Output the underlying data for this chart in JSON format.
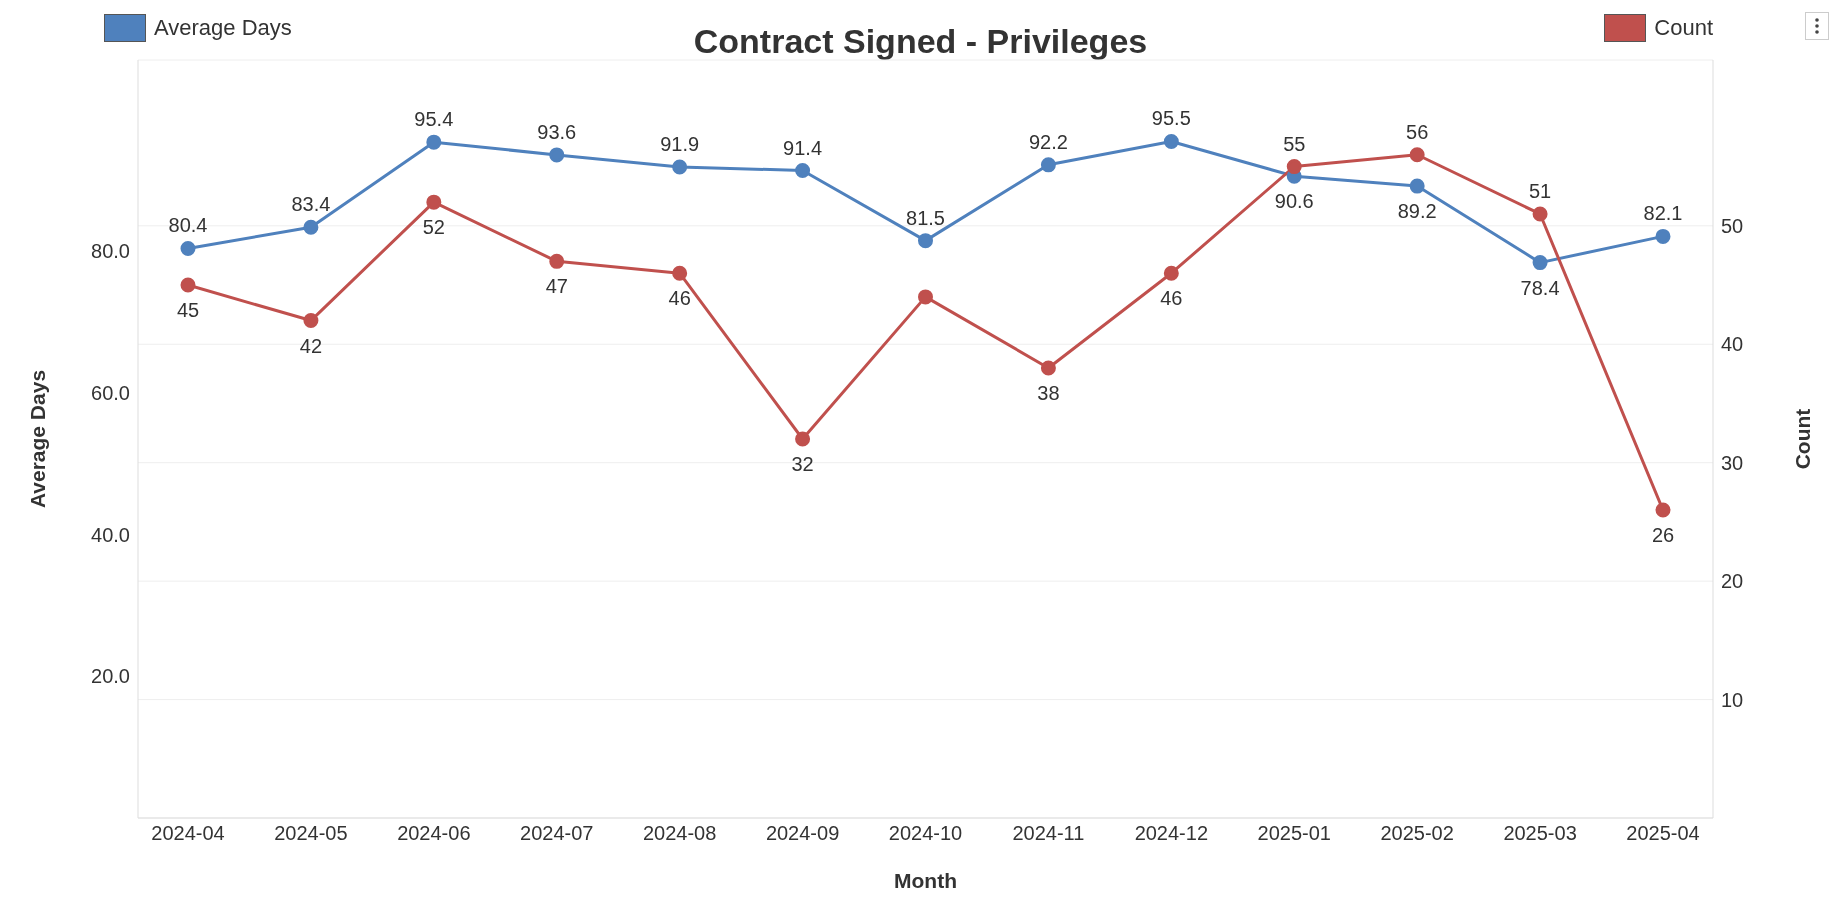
{
  "chart_data": {
    "type": "line",
    "title": "Contract Signed - Privileges",
    "xlabel": "Month",
    "ylabel": "Average Days",
    "y2label": "Count",
    "categories": [
      "2024-04",
      "2024-05",
      "2024-06",
      "2024-07",
      "2024-08",
      "2024-09",
      "2024-10",
      "2024-11",
      "2024-12",
      "2025-01",
      "2025-02",
      "2025-03",
      "2025-04"
    ],
    "series": [
      {
        "name": "Average Days",
        "color": "#4f81bd",
        "values": [
          80.4,
          83.4,
          95.4,
          93.6,
          91.9,
          91.4,
          81.5,
          92.2,
          95.5,
          90.6,
          89.2,
          78.4,
          82.1
        ],
        "value_labels": [
          "80.4",
          "83.4",
          "95.4",
          "93.6",
          "91.9",
          "91.4",
          "81.5",
          "92.2",
          "95.5",
          "90.6",
          "89.2",
          "78.4",
          "82.1"
        ]
      },
      {
        "name": "Count",
        "color": "#c0504d",
        "axis": "y2",
        "values": [
          45,
          42,
          52,
          47,
          46,
          32,
          44,
          38,
          46,
          55,
          56,
          51,
          26
        ],
        "value_labels": [
          "45",
          "42",
          "52",
          "47",
          "46",
          "32",
          null,
          "38",
          "46",
          "55",
          "56",
          "51",
          "26"
        ]
      }
    ],
    "ylim": [
      0,
      107
    ],
    "yticks": [
      {
        "value": 20,
        "label": "20.0"
      },
      {
        "value": 40,
        "label": "40.0"
      },
      {
        "value": 60,
        "label": "60.0"
      },
      {
        "value": 80,
        "label": "80.0"
      }
    ],
    "y2lim": [
      0,
      64
    ],
    "y2ticks": [
      10,
      20,
      30,
      40,
      50
    ],
    "grid": "y",
    "legend": "top",
    "marker": "circle"
  }
}
